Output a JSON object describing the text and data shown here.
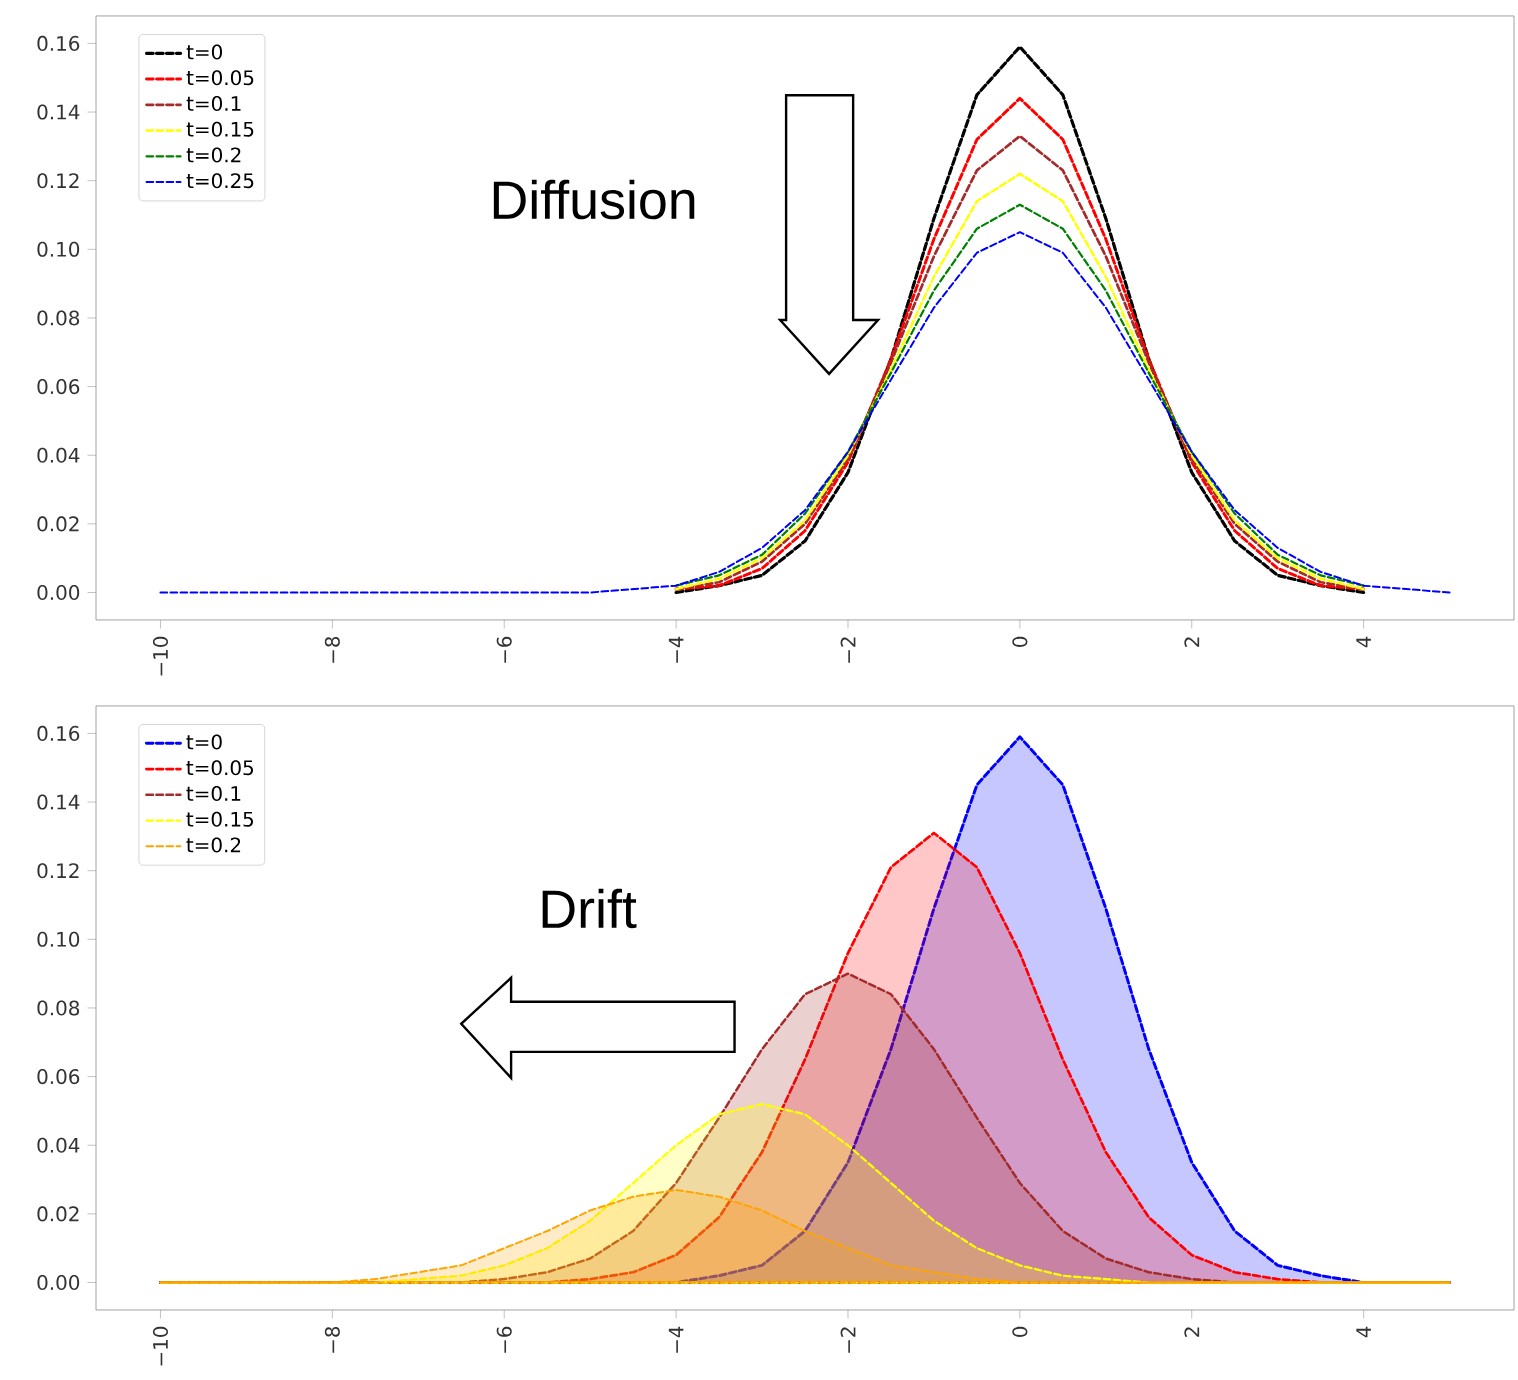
{
  "chart_data": [
    {
      "type": "line",
      "line_style": "dashed",
      "legend": "top left",
      "annotations": [
        "Diffusion"
      ],
      "x": [
        -10,
        -6,
        -5,
        -4,
        -3.5,
        -3,
        -2.5,
        -2,
        -1.5,
        -1,
        -0.5,
        0,
        0.5,
        1,
        1.5,
        2,
        2.5,
        3,
        3.5,
        4,
        5
      ],
      "series": [
        {
          "name": "t=0",
          "color": "#000000",
          "values": [
            null,
            null,
            null,
            0,
            0.002,
            0.005,
            0.015,
            0.035,
            0.068,
            0.109,
            0.145,
            0.159,
            0.145,
            0.109,
            0.068,
            0.035,
            0.015,
            0.005,
            0.002,
            0,
            null
          ]
        },
        {
          "name": "t=0.05",
          "color": "#ff0000",
          "values": [
            null,
            null,
            null,
            0.001,
            0.002,
            0.007,
            0.018,
            0.038,
            0.068,
            0.103,
            0.132,
            0.144,
            0.132,
            0.103,
            0.068,
            0.038,
            0.018,
            0.007,
            0.002,
            0.001,
            null
          ]
        },
        {
          "name": "t=0.1",
          "color": "#a52a2a",
          "values": [
            null,
            null,
            null,
            0.001,
            0.003,
            0.009,
            0.02,
            0.039,
            0.067,
            0.098,
            0.123,
            0.133,
            0.123,
            0.098,
            0.067,
            0.039,
            0.02,
            0.009,
            0.003,
            0.001,
            null
          ]
        },
        {
          "name": "t=0.15",
          "color": "#ffff00",
          "values": [
            null,
            null,
            null,
            0.001,
            0.004,
            0.01,
            0.021,
            0.04,
            0.065,
            0.092,
            0.114,
            0.122,
            0.114,
            0.092,
            0.065,
            0.04,
            0.021,
            0.01,
            0.004,
            0.001,
            null
          ]
        },
        {
          "name": "t=0.2",
          "color": "#008000",
          "values": [
            null,
            null,
            null,
            0.002,
            0.005,
            0.011,
            0.023,
            0.041,
            0.064,
            0.088,
            0.106,
            0.113,
            0.106,
            0.088,
            0.064,
            0.041,
            0.023,
            0.011,
            0.005,
            0.002,
            null
          ]
        },
        {
          "name": "t=0.25",
          "color": "#0000ff",
          "values": [
            0,
            0,
            0,
            0.002,
            0.006,
            0.013,
            0.024,
            0.041,
            0.062,
            0.083,
            0.099,
            0.105,
            0.099,
            0.083,
            0.062,
            0.041,
            0.024,
            0.013,
            0.006,
            0.002,
            0
          ]
        }
      ],
      "xlim": [
        -10.75,
        5.75
      ],
      "xticks": [
        {
          "value": -10,
          "label": "−10"
        },
        {
          "value": -8,
          "label": "−8"
        },
        {
          "value": -6,
          "label": "−6"
        },
        {
          "value": -4,
          "label": "−4"
        },
        {
          "value": -2,
          "label": "−2"
        },
        0,
        2,
        4
      ],
      "ylim": [
        -0.008,
        0.168
      ],
      "yticks": [
        {
          "value": 0,
          "label": "0.00"
        },
        {
          "value": 0.02,
          "label": "0.02"
        },
        {
          "value": 0.04,
          "label": "0.04"
        },
        {
          "value": 0.06,
          "label": "0.06"
        },
        {
          "value": 0.08,
          "label": "0.08"
        },
        {
          "value": 0.1,
          "label": "0.10"
        },
        {
          "value": 0.12,
          "label": "0.12"
        },
        {
          "value": 0.14,
          "label": "0.14"
        },
        {
          "value": 0.16,
          "label": "0.16"
        }
      ]
    },
    {
      "type": "area",
      "line_style": "dashed",
      "legend": "top left",
      "annotations": [
        "Drift"
      ],
      "x": [
        -10,
        -9,
        -8,
        -7.5,
        -7,
        -6.5,
        -6,
        -5.5,
        -5,
        -4.5,
        -4,
        -3.5,
        -3,
        -2.5,
        -2,
        -1.5,
        -1,
        -0.5,
        0,
        0.5,
        1,
        1.5,
        2,
        2.5,
        3,
        3.5,
        4,
        5
      ],
      "series": [
        {
          "name": "t=0",
          "color": "#0000ff",
          "values": [
            0,
            0,
            0,
            0,
            0,
            0,
            0,
            0,
            0,
            0,
            0,
            0.002,
            0.005,
            0.015,
            0.035,
            0.068,
            0.109,
            0.145,
            0.159,
            0.145,
            0.109,
            0.068,
            0.035,
            0.015,
            0.005,
            0.002,
            0,
            0
          ]
        },
        {
          "name": "t=0.05",
          "color": "#ff0000",
          "values": [
            0,
            0,
            0,
            0,
            0,
            0,
            0,
            0,
            0.001,
            0.003,
            0.008,
            0.019,
            0.038,
            0.065,
            0.096,
            0.121,
            0.131,
            0.121,
            0.096,
            0.065,
            0.038,
            0.019,
            0.008,
            0.003,
            0.001,
            0,
            0,
            0
          ]
        },
        {
          "name": "t=0.1",
          "color": "#a52a2a",
          "values": [
            0,
            0,
            0,
            0,
            0,
            0,
            0.001,
            0.003,
            0.007,
            0.015,
            0.029,
            0.048,
            0.068,
            0.084,
            0.09,
            0.084,
            0.068,
            0.048,
            0.029,
            0.015,
            0.007,
            0.003,
            0.001,
            0,
            0,
            0,
            0,
            0
          ]
        },
        {
          "name": "t=0.15",
          "color": "#ffff00",
          "values": [
            0,
            0,
            0,
            0,
            0.001,
            0.002,
            0.005,
            0.01,
            0.018,
            0.029,
            0.04,
            0.049,
            0.052,
            0.049,
            0.04,
            0.029,
            0.018,
            0.01,
            0.005,
            0.002,
            0.001,
            0,
            0,
            0,
            0,
            0,
            0,
            0
          ]
        },
        {
          "name": "t=0.2",
          "color": "#ffa500",
          "values": [
            0,
            0,
            0,
            0.001,
            0.003,
            0.005,
            0.01,
            0.015,
            0.021,
            0.025,
            0.027,
            0.025,
            0.021,
            0.015,
            0.01,
            0.005,
            0.003,
            0.001,
            0,
            0,
            0,
            0,
            0,
            0,
            0,
            0,
            0,
            0
          ]
        }
      ],
      "xlim": [
        -10.75,
        5.75
      ],
      "xticks": [
        {
          "value": -10,
          "label": "−10"
        },
        {
          "value": -8,
          "label": "−8"
        },
        {
          "value": -6,
          "label": "−6"
        },
        {
          "value": -4,
          "label": "−4"
        },
        {
          "value": -2,
          "label": "−2"
        },
        0,
        2,
        4
      ],
      "ylim": [
        -0.008,
        0.168
      ],
      "yticks": [
        {
          "value": 0,
          "label": "0.00"
        },
        {
          "value": 0.02,
          "label": "0.02"
        },
        {
          "value": 0.04,
          "label": "0.04"
        },
        {
          "value": 0.06,
          "label": "0.06"
        },
        {
          "value": 0.08,
          "label": "0.08"
        },
        {
          "value": 0.1,
          "label": "0.10"
        },
        {
          "value": 0.12,
          "label": "0.12"
        },
        {
          "value": 0.14,
          "label": "0.14"
        },
        {
          "value": 0.16,
          "label": "0.16"
        }
      ]
    }
  ]
}
